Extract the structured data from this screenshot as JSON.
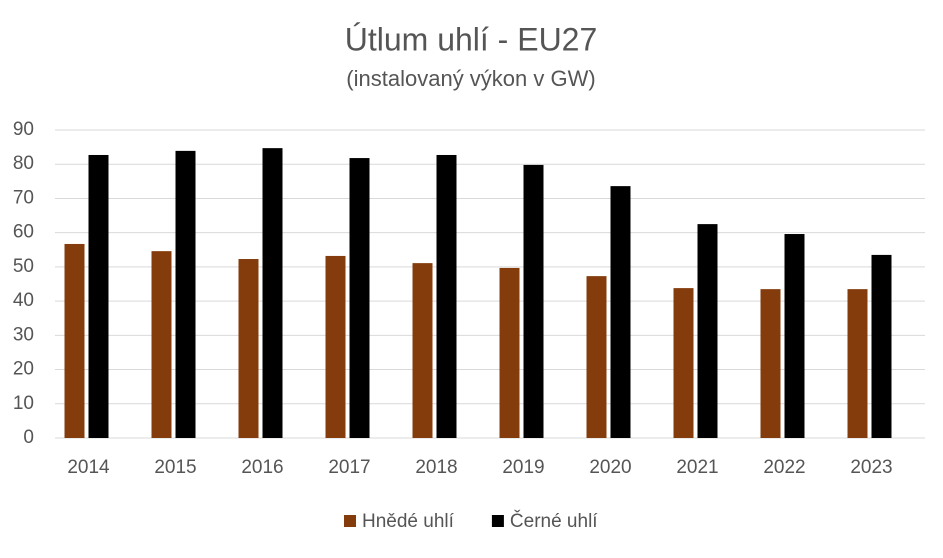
{
  "chart_data": {
    "type": "bar",
    "title": "Útlum uhlí - EU27",
    "subtitle": "(instalovaný výkon v GW)",
    "categories": [
      "2014",
      "2015",
      "2016",
      "2017",
      "2018",
      "2019",
      "2020",
      "2021",
      "2022",
      "2023"
    ],
    "series": [
      {
        "name": "Hnědé uhlí",
        "color": "#843c0c",
        "values": [
          56.7,
          54.6,
          52.3,
          53.2,
          51.1,
          49.7,
          47.3,
          43.8,
          43.5,
          43.5
        ]
      },
      {
        "name": "Černé uhlí",
        "color": "#000000",
        "values": [
          82.7,
          83.9,
          84.7,
          81.8,
          82.7,
          79.8,
          73.6,
          62.5,
          59.6,
          53.5
        ]
      }
    ],
    "ylim": [
      0,
      90
    ],
    "yticks": [
      0,
      10,
      20,
      30,
      40,
      50,
      60,
      70,
      80,
      90
    ],
    "grid": true,
    "legend": "bottom"
  }
}
